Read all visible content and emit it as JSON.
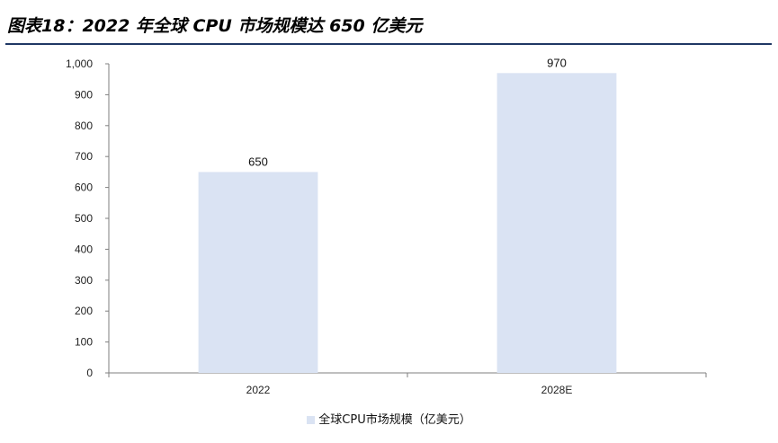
{
  "title": "图表18：2022 年全球 CPU 市场规模达 650 亿美元",
  "colors": {
    "bar": "#dae3f3",
    "axis": "#7f7f7f",
    "rule": "#1f3864"
  },
  "chart_data": {
    "type": "bar",
    "categories": [
      "2022",
      "2028E"
    ],
    "series": [
      {
        "name": "全球CPU市场规模（亿美元）",
        "values": [
          650,
          970
        ]
      }
    ],
    "data_labels": [
      "650",
      "970"
    ],
    "ylim": [
      0,
      1000
    ],
    "yticks": [
      0,
      100,
      200,
      300,
      400,
      500,
      600,
      700,
      800,
      900,
      1000
    ],
    "ytick_labels": [
      "0",
      "100",
      "200",
      "300",
      "400",
      "500",
      "600",
      "700",
      "800",
      "900",
      "1,000"
    ],
    "grid": false,
    "legend_position": "bottom"
  }
}
